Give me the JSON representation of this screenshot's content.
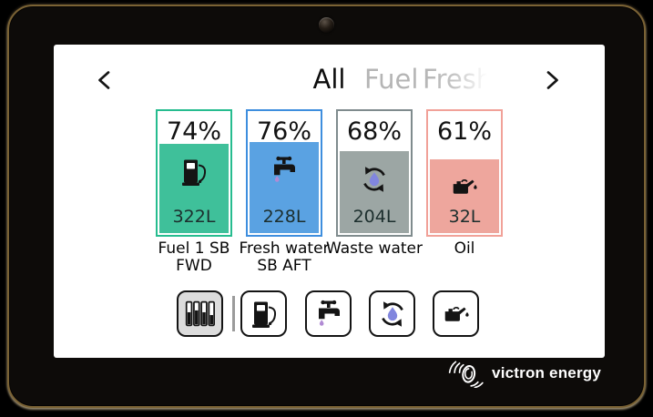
{
  "device": {
    "brand_logo_text": "victron energy"
  },
  "nav": {
    "tabs": [
      {
        "label": "All",
        "active": true
      },
      {
        "label": "Fuel",
        "active": false
      },
      {
        "label": "Fresh",
        "active": false,
        "fading": true
      }
    ]
  },
  "tanks": [
    {
      "id": "fuel-1-sb-fwd",
      "percent": 74,
      "percent_label": "74%",
      "volume_label": "322L",
      "label_lines": [
        "Fuel 1 SB",
        "FWD"
      ],
      "icon": "fuel-pump",
      "border_color": "#26bc8f",
      "fill_color": "#3fc09a"
    },
    {
      "id": "fresh-water-sb-aft",
      "percent": 76,
      "percent_label": "76%",
      "volume_label": "228L",
      "label_lines": [
        "Fresh water",
        "SB AFT"
      ],
      "icon": "water-tap",
      "border_color": "#3e8ede",
      "fill_color": "#5aa2e2"
    },
    {
      "id": "waste-water",
      "percent": 68,
      "percent_label": "68%",
      "volume_label": "204L",
      "label_lines": [
        "Waste water"
      ],
      "icon": "recycle-arrows",
      "border_color": "#7f8b8d",
      "fill_color": "#9ca6a4"
    },
    {
      "id": "oil",
      "percent": 61,
      "percent_label": "61%",
      "volume_label": "32L",
      "label_lines": [
        "Oil"
      ],
      "icon": "oil-can",
      "border_color": "#f1a198",
      "fill_color": "#eea69d"
    }
  ],
  "filter_buttons": [
    {
      "id": "all-tanks",
      "icon": "tank-levels",
      "selected": true
    },
    {
      "id": "fuel",
      "icon": "fuel-pump",
      "selected": false
    },
    {
      "id": "fresh-water",
      "icon": "water-tap",
      "selected": false
    },
    {
      "id": "waste-water",
      "icon": "recycle-arrows",
      "selected": false
    },
    {
      "id": "oil",
      "icon": "oil-can",
      "selected": false
    }
  ],
  "colors": {
    "tab_active": "#0d0d0d",
    "tab_inactive": "#b5b5b5",
    "selected_button_bg": "#dcdcdc",
    "bezel_gold": "#7a6234",
    "tap_drop_card": "#b18bd4",
    "tap_drop_button": "#5a74d8",
    "recycle_drop": "#8186de"
  }
}
